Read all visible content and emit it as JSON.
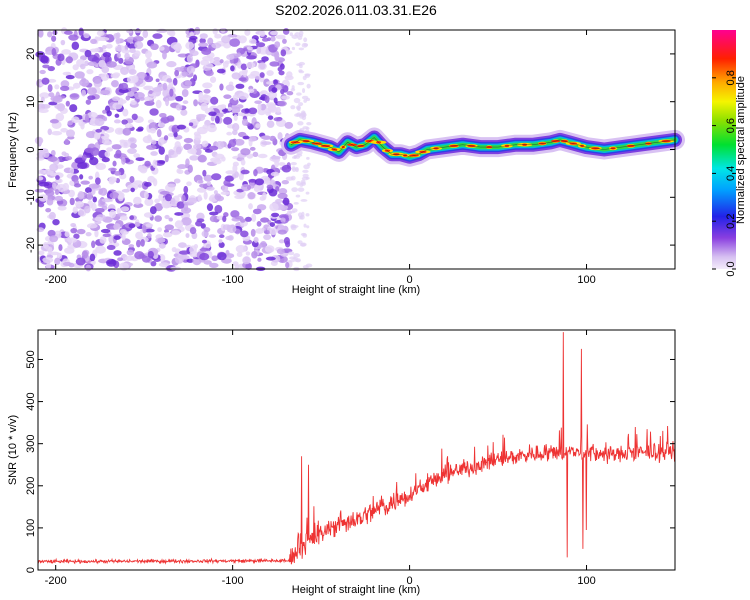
{
  "title": "S202.2026.011.03.31.E26",
  "chart_data": [
    {
      "type": "heatmap",
      "name": "spectrogram",
      "xlabel": "Height of straight line (km)",
      "ylabel": "Frequency (Hz)",
      "xlim": [
        -210,
        150
      ],
      "ylim": [
        -25,
        25
      ],
      "x_ticks": [
        -200,
        -100,
        0,
        100
      ],
      "y_ticks": [
        -20,
        -10,
        0,
        10,
        20
      ],
      "noise_region_x": [
        -210,
        -67
      ],
      "signal_region_x": [
        -67,
        150
      ],
      "signal_centerline": [
        [
          -67,
          1.0
        ],
        [
          -62,
          2.0
        ],
        [
          -55,
          1.5
        ],
        [
          -50,
          1.0
        ],
        [
          -45,
          0.5
        ],
        [
          -40,
          -0.5
        ],
        [
          -35,
          1.5
        ],
        [
          -30,
          0.5
        ],
        [
          -25,
          1.0
        ],
        [
          -20,
          2.5
        ],
        [
          -15,
          0.5
        ],
        [
          -10,
          -1.0
        ],
        [
          -5,
          -1.0
        ],
        [
          0,
          -1.5
        ],
        [
          5,
          -1.0
        ],
        [
          10,
          0.0
        ],
        [
          20,
          0.5
        ],
        [
          30,
          1.0
        ],
        [
          40,
          0.5
        ],
        [
          50,
          0.5
        ],
        [
          60,
          1.0
        ],
        [
          70,
          1.0
        ],
        [
          80,
          1.5
        ],
        [
          85,
          2.0
        ],
        [
          90,
          1.5
        ],
        [
          95,
          1.0
        ],
        [
          100,
          0.5
        ],
        [
          110,
          0.0
        ],
        [
          120,
          0.5
        ],
        [
          130,
          1.0
        ],
        [
          140,
          1.5
        ],
        [
          150,
          2.0
        ]
      ],
      "colorbar": {
        "label": "Normalized spectral amplitude",
        "range": [
          0,
          1
        ],
        "ticks": [
          "0.0",
          "0.2",
          "0.4",
          "0.6",
          "0.8"
        ],
        "tick_values": [
          0,
          0.2,
          0.4,
          0.6,
          0.8
        ]
      }
    },
    {
      "type": "line",
      "name": "snr",
      "xlabel": "Height of straight line (km)",
      "ylabel": "SNR (10 * v/v)",
      "xlim": [
        -210,
        150
      ],
      "ylim": [
        0,
        570
      ],
      "x_ticks": [
        -200,
        -100,
        0,
        100
      ],
      "y_ticks": [
        0,
        100,
        200,
        300,
        400,
        500
      ],
      "color": "#ee3333",
      "trend": [
        [
          -210,
          20
        ],
        [
          -68,
          22
        ],
        [
          -60,
          60
        ],
        [
          -50,
          85
        ],
        [
          -40,
          110
        ],
        [
          -30,
          120
        ],
        [
          -20,
          140
        ],
        [
          -10,
          160
        ],
        [
          0,
          180
        ],
        [
          10,
          205
        ],
        [
          20,
          225
        ],
        [
          30,
          240
        ],
        [
          40,
          250
        ],
        [
          50,
          262
        ],
        [
          60,
          270
        ],
        [
          70,
          275
        ],
        [
          80,
          280
        ],
        [
          90,
          280
        ],
        [
          100,
          278
        ],
        [
          110,
          275
        ],
        [
          120,
          275
        ],
        [
          130,
          278
        ],
        [
          140,
          280
        ],
        [
          150,
          282
        ]
      ],
      "features": [
        {
          "x": -61,
          "value": 270
        },
        {
          "x": -57,
          "value": 250
        },
        {
          "x": 87,
          "value": 565
        },
        {
          "x": 89,
          "value": 30
        },
        {
          "x": 97,
          "value": 525
        },
        {
          "x": 98,
          "value": 50
        },
        {
          "x": 100,
          "value": 95
        }
      ]
    }
  ]
}
